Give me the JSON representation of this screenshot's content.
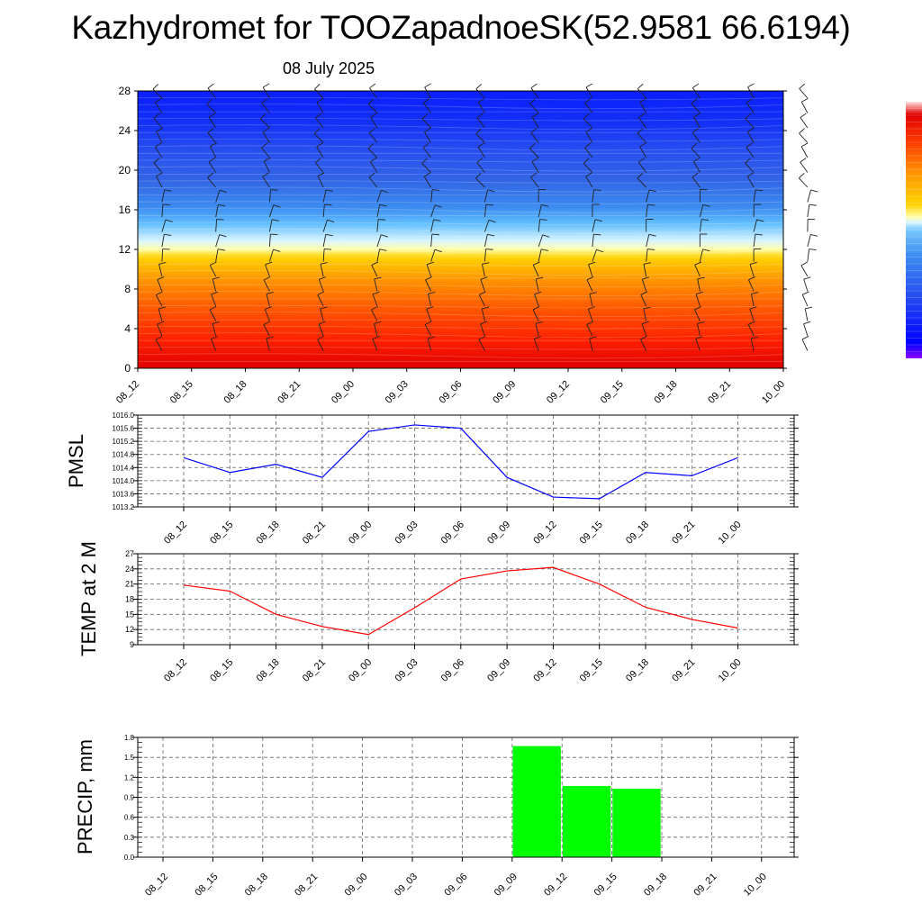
{
  "title": "Kazhydromet for TOOZapadnoeSK(52.9581 66.6194)",
  "subtitle": "08 July 2025",
  "colors": {
    "pmsl_line": "#0000ff",
    "temp_line": "#ff0000",
    "precip_bar": "#00ff00"
  },
  "chart_data": [
    {
      "type": "heatmap",
      "title": "",
      "x": [
        "08_12",
        "08_15",
        "08_18",
        "08_21",
        "09_00",
        "09_03",
        "09_06",
        "09_09",
        "09_12",
        "09_15",
        "09_18",
        "09_21",
        "10_00"
      ],
      "yticks": [
        0,
        4,
        8,
        12,
        16,
        20,
        24,
        28
      ],
      "ylim": [
        0,
        28
      ],
      "xlabel": "",
      "ylabel": "",
      "description_layers": "temperature-like color shading with wind barbs",
      "colorbar": [
        "#8b00ff",
        "#0000ff",
        "#1e50ff",
        "#3c8cf0",
        "#78c8ff",
        "#c8f0ff",
        "#ffffc8",
        "#ffd700",
        "#ffa000",
        "#ff6400",
        "#ff2800",
        "#e00000"
      ],
      "wind_barbs": true,
      "grid": false
    },
    {
      "type": "line",
      "ylabel": "PMSL",
      "x": [
        "08_12",
        "08_15",
        "08_18",
        "08_21",
        "09_00",
        "09_03",
        "09_06",
        "09_09",
        "09_12",
        "09_15",
        "09_18",
        "09_21",
        "10_00"
      ],
      "series": [
        {
          "values": [
            1014.7,
            1014.25,
            1014.5,
            1014.1,
            1015.5,
            1015.7,
            1015.6,
            1014.1,
            1013.5,
            1013.45,
            1014.25,
            1014.15,
            1014.7
          ]
        }
      ],
      "ylim": [
        1013.2,
        1016.0
      ],
      "yticks": [
        "1013.2",
        "1013.6",
        "1014.0",
        "1014.4",
        "1014.8",
        "1015.2",
        "1015.6",
        "1016.0"
      ],
      "grid": true
    },
    {
      "type": "line",
      "ylabel": "TEMP at 2 M",
      "x": [
        "08_12",
        "08_15",
        "08_18",
        "08_21",
        "09_00",
        "09_03",
        "09_06",
        "09_09",
        "09_12",
        "09_15",
        "09_18",
        "09_21",
        "10_00"
      ],
      "series": [
        {
          "values": [
            20.8,
            19.6,
            15.0,
            12.6,
            11.0,
            16.3,
            22.0,
            23.6,
            24.3,
            21.0,
            16.4,
            14.0,
            12.3
          ]
        }
      ],
      "ylim": [
        9,
        27
      ],
      "yticks": [
        "9",
        "12",
        "15",
        "18",
        "21",
        "24",
        "27"
      ],
      "grid": true
    },
    {
      "type": "bar",
      "ylabel": "PRECIP, mm",
      "categories": [
        "08_12",
        "08_15",
        "08_18",
        "08_21",
        "09_00",
        "09_03",
        "09_06",
        "09_09",
        "09_12",
        "09_15",
        "09_18",
        "09_21",
        "10_00"
      ],
      "values": [
        0,
        0,
        0,
        0,
        0,
        0,
        0,
        1.67,
        1.07,
        1.03,
        0,
        0,
        0
      ],
      "ylim": [
        0,
        1.8
      ],
      "yticks": [
        "0.0",
        "0.3",
        "0.6",
        "0.9",
        "1.2",
        "1.5",
        "1.8"
      ],
      "grid": true
    }
  ]
}
